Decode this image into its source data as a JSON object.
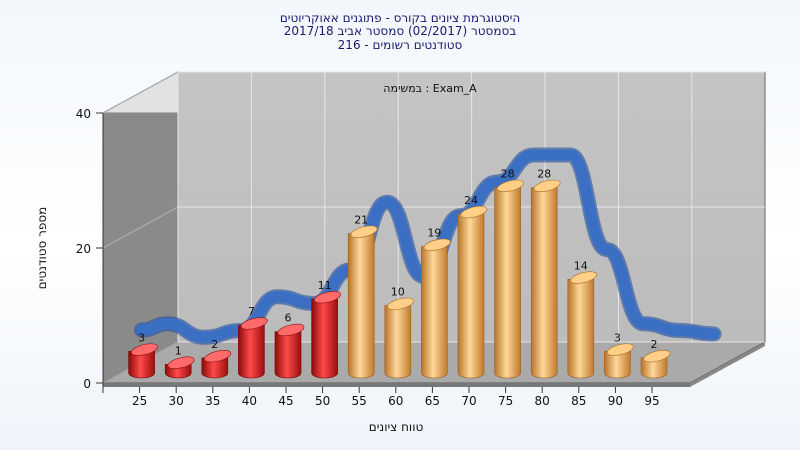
{
  "chart_data": {
    "type": "bar",
    "title_lines": [
      "היסטוגרמת ציונים בקורס - פתוגנים אאוקריוטים",
      "בסמסטר  (02/2017)  סמסטר אביב 2017/18",
      "סטודנטים רשומים - 216"
    ],
    "panel_label": "במשימה : Exam_A",
    "xlabel": "טווח ציונים",
    "ylabel": "מספר סטודנטים",
    "ylim": [
      0,
      40
    ],
    "yticks": [
      "0",
      "20",
      "40"
    ],
    "categories": [
      "25",
      "30",
      "35",
      "40",
      "45",
      "50",
      "55",
      "60",
      "65",
      "70",
      "75",
      "80",
      "85",
      "90",
      "95"
    ],
    "values": [
      3,
      1,
      2,
      7,
      6,
      11,
      21,
      10,
      19,
      24,
      28,
      28,
      14,
      3,
      2
    ],
    "bar_colors": [
      "#e02020",
      "#e02020",
      "#e02020",
      "#e02020",
      "#e02020",
      "#e02020",
      "#f0a850",
      "#f0a850",
      "#f0a850",
      "#f0a850",
      "#f0a850",
      "#f0a850",
      "#f0a850",
      "#f0a850",
      "#f0a850"
    ],
    "curve_color": "#3a6fc4",
    "grid": true
  }
}
